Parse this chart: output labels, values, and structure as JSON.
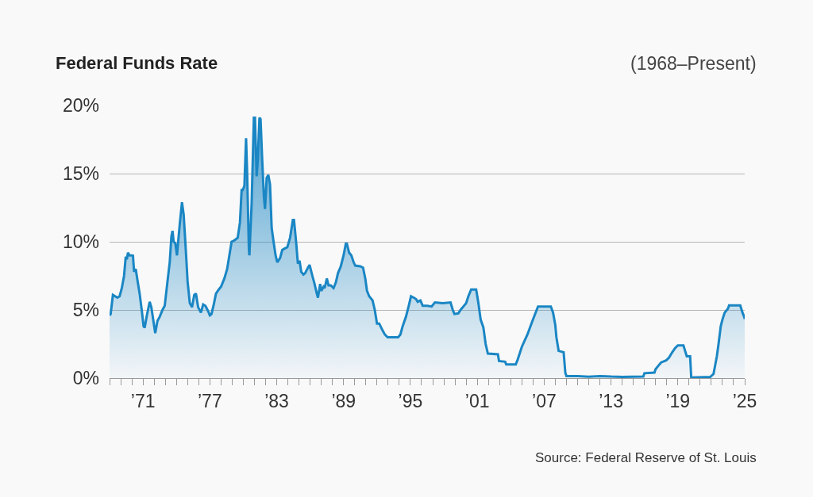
{
  "chart_data": {
    "type": "area",
    "title": "Federal Funds Rate",
    "subtitle": "(1968–Present)",
    "annotations": [
      "Source: Federal Reserve of St. Louis"
    ],
    "xlim": [
      1968,
      2025
    ],
    "xticks": [
      {
        "value": 1968,
        "label": null
      },
      {
        "value": 1969,
        "label": null
      },
      {
        "value": 1970,
        "label": null
      },
      {
        "value": 1971,
        "label": "’71"
      },
      {
        "value": 1972,
        "label": null
      },
      {
        "value": 1973,
        "label": null
      },
      {
        "value": 1974,
        "label": null
      },
      {
        "value": 1975,
        "label": null
      },
      {
        "value": 1976,
        "label": null
      },
      {
        "value": 1977,
        "label": "’77"
      },
      {
        "value": 1978,
        "label": null
      },
      {
        "value": 1979,
        "label": null
      },
      {
        "value": 1980,
        "label": null
      },
      {
        "value": 1981,
        "label": null
      },
      {
        "value": 1982,
        "label": null
      },
      {
        "value": 1983,
        "label": "’83"
      },
      {
        "value": 1984,
        "label": null
      },
      {
        "value": 1985,
        "label": null
      },
      {
        "value": 1986,
        "label": null
      },
      {
        "value": 1987,
        "label": null
      },
      {
        "value": 1988,
        "label": null
      },
      {
        "value": 1989,
        "label": "’89"
      },
      {
        "value": 1990,
        "label": null
      },
      {
        "value": 1991,
        "label": null
      },
      {
        "value": 1992,
        "label": null
      },
      {
        "value": 1993,
        "label": null
      },
      {
        "value": 1994,
        "label": null
      },
      {
        "value": 1995,
        "label": "’95"
      },
      {
        "value": 1996,
        "label": null
      },
      {
        "value": 1997,
        "label": null
      },
      {
        "value": 1998,
        "label": null
      },
      {
        "value": 1999,
        "label": null
      },
      {
        "value": 2000,
        "label": null
      },
      {
        "value": 2001,
        "label": "’01"
      },
      {
        "value": 2002,
        "label": null
      },
      {
        "value": 2003,
        "label": null
      },
      {
        "value": 2004,
        "label": null
      },
      {
        "value": 2005,
        "label": null
      },
      {
        "value": 2006,
        "label": null
      },
      {
        "value": 2007,
        "label": "’07"
      },
      {
        "value": 2008,
        "label": null
      },
      {
        "value": 2009,
        "label": null
      },
      {
        "value": 2010,
        "label": null
      },
      {
        "value": 2011,
        "label": null
      },
      {
        "value": 2012,
        "label": null
      },
      {
        "value": 2013,
        "label": "’13"
      },
      {
        "value": 2014,
        "label": null
      },
      {
        "value": 2015,
        "label": null
      },
      {
        "value": 2016,
        "label": null
      },
      {
        "value": 2017,
        "label": null
      },
      {
        "value": 2018,
        "label": null
      },
      {
        "value": 2019,
        "label": "’19"
      },
      {
        "value": 2020,
        "label": null
      },
      {
        "value": 2021,
        "label": null
      },
      {
        "value": 2022,
        "label": null
      },
      {
        "value": 2023,
        "label": null
      },
      {
        "value": 2024,
        "label": null
      },
      {
        "value": 2025,
        "label": "’25"
      }
    ],
    "ylim": [
      0,
      20
    ],
    "yticks": [
      {
        "value": 0,
        "label": "0%"
      },
      {
        "value": 5,
        "label": "5%"
      },
      {
        "value": 10,
        "label": "10%"
      },
      {
        "value": 15,
        "label": "15%"
      },
      {
        "value": 20,
        "label": "20%"
      }
    ],
    "grid": "y",
    "series": [
      {
        "color": "#1a86c4",
        "x": [
          1968.0,
          1968.1,
          1968.3,
          1968.5,
          1968.7,
          1968.9,
          1969.1,
          1969.3,
          1969.45,
          1969.55,
          1969.65,
          1969.8,
          1970.0,
          1970.1,
          1970.2,
          1970.35,
          1970.5,
          1970.7,
          1970.9,
          1971.05,
          1971.15,
          1971.35,
          1971.6,
          1971.75,
          1971.95,
          1972.1,
          1972.3,
          1972.5,
          1972.75,
          1972.95,
          1973.2,
          1973.4,
          1973.55,
          1973.65,
          1973.75,
          1973.9,
          1974.05,
          1974.3,
          1974.5,
          1974.65,
          1974.85,
          1975.0,
          1975.2,
          1975.4,
          1975.6,
          1975.75,
          1975.95,
          1976.2,
          1976.4,
          1976.6,
          1976.85,
          1977.0,
          1977.15,
          1977.35,
          1977.55,
          1977.8,
          1978.0,
          1978.3,
          1978.55,
          1978.75,
          1978.95,
          1979.2,
          1979.5,
          1979.7,
          1979.85,
          1979.95,
          1980.1,
          1980.25,
          1980.35,
          1980.5,
          1980.55,
          1980.75,
          1980.95,
          1981.05,
          1981.2,
          1981.3,
          1981.45,
          1981.55,
          1981.7,
          1981.85,
          1981.95,
          1982.1,
          1982.25,
          1982.4,
          1982.55,
          1982.7,
          1982.9,
          1983.05,
          1983.3,
          1983.5,
          1983.7,
          1983.95,
          1984.2,
          1984.45,
          1984.55,
          1984.75,
          1984.9,
          1985.05,
          1985.2,
          1985.4,
          1985.55,
          1985.8,
          1985.95,
          1986.2,
          1986.4,
          1986.6,
          1986.7,
          1986.9,
          1987.0,
          1987.2,
          1987.3,
          1987.5,
          1987.65,
          1987.85,
          1988.1,
          1988.3,
          1988.5,
          1988.75,
          1989.0,
          1989.2,
          1989.3,
          1989.5,
          1989.7,
          1989.9,
          1990.05,
          1990.5,
          1990.75,
          1990.95,
          1991.1,
          1991.3,
          1991.6,
          1991.8,
          1992.0,
          1992.2,
          1992.5,
          1992.7,
          1992.95,
          1993.5,
          1993.9,
          1994.1,
          1994.3,
          1994.6,
          1994.85,
          1995.05,
          1995.3,
          1995.5,
          1995.65,
          1995.9,
          1996.1,
          1996.5,
          1996.9,
          1997.2,
          1997.9,
          1998.6,
          1998.8,
          1998.95,
          1999.3,
          1999.5,
          1999.8,
          2000.0,
          2000.2,
          2000.45,
          2000.9,
          2001.1,
          2001.3,
          2001.55,
          2001.75,
          2001.95,
          2002.85,
          2002.95,
          2003.5,
          2003.6,
          2004.45,
          2004.6,
          2005.0,
          2005.5,
          2006.0,
          2006.45,
          2007.6,
          2007.8,
          2008.0,
          2008.1,
          2008.3,
          2008.75,
          2008.9,
          2009.0,
          2010.0,
          2011.0,
          2012.0,
          2013.0,
          2014.0,
          2015.9,
          2016.0,
          2016.9,
          2017.0,
          2017.25,
          2017.5,
          2017.95,
          2018.2,
          2018.5,
          2018.75,
          2019.0,
          2019.5,
          2019.65,
          2019.8,
          2020.1,
          2020.2,
          2021.9,
          2022.2,
          2022.5,
          2022.65,
          2022.85,
          2023.0,
          2023.2,
          2023.5,
          2023.6,
          2024.6,
          2024.8,
          2024.95,
          2025.0
        ],
        "values": [
          4.6,
          4.7,
          6.1,
          6.0,
          5.9,
          6.0,
          6.6,
          7.5,
          8.9,
          8.7,
          9.2,
          9.0,
          9.0,
          8.98,
          7.8,
          8.0,
          7.2,
          6.2,
          4.9,
          3.8,
          3.7,
          4.6,
          5.6,
          5.2,
          4.1,
          3.3,
          4.2,
          4.5,
          5.0,
          5.3,
          7.1,
          8.5,
          10.4,
          10.8,
          10.0,
          9.9,
          9.0,
          11.3,
          12.9,
          12.0,
          9.3,
          7.1,
          5.5,
          5.2,
          6.1,
          6.2,
          5.2,
          4.8,
          5.4,
          5.3,
          4.9,
          4.6,
          4.7,
          5.4,
          6.2,
          6.5,
          6.7,
          7.3,
          8.0,
          9.0,
          10.0,
          10.1,
          10.3,
          11.4,
          13.8,
          13.8,
          14.1,
          17.6,
          15.0,
          9.5,
          9.0,
          12.8,
          19.1,
          19.1,
          14.8,
          16.0,
          19.1,
          19.0,
          16.0,
          13.3,
          12.4,
          14.7,
          14.9,
          14.2,
          11.0,
          10.1,
          9.0,
          8.5,
          8.8,
          9.4,
          9.5,
          9.6,
          10.3,
          11.6,
          11.6,
          9.9,
          8.4,
          8.6,
          7.8,
          7.6,
          7.7,
          8.1,
          8.3,
          7.5,
          6.9,
          6.2,
          5.9,
          6.9,
          6.4,
          6.7,
          6.6,
          7.3,
          6.8,
          6.8,
          6.6,
          7.0,
          7.7,
          8.2,
          9.0,
          9.85,
          9.85,
          9.2,
          9.0,
          8.5,
          8.25,
          8.2,
          8.1,
          7.3,
          6.4,
          6.0,
          5.7,
          5.0,
          4.0,
          4.0,
          3.5,
          3.2,
          3.0,
          3.0,
          3.0,
          3.2,
          3.8,
          4.5,
          5.3,
          6.0,
          5.9,
          5.8,
          5.6,
          5.7,
          5.3,
          5.3,
          5.25,
          5.55,
          5.5,
          5.55,
          5.0,
          4.7,
          4.75,
          5.0,
          5.3,
          5.5,
          6.0,
          6.5,
          6.5,
          5.5,
          4.3,
          3.7,
          2.5,
          1.8,
          1.75,
          1.25,
          1.2,
          1.0,
          1.0,
          1.3,
          2.3,
          3.2,
          4.3,
          5.25,
          5.25,
          4.8,
          3.9,
          3.0,
          2.0,
          1.9,
          0.4,
          0.15,
          0.15,
          0.1,
          0.15,
          0.11,
          0.09,
          0.12,
          0.36,
          0.41,
          0.65,
          0.91,
          1.15,
          1.3,
          1.5,
          1.9,
          2.2,
          2.4,
          2.4,
          2.0,
          1.6,
          1.6,
          0.05,
          0.08,
          0.3,
          1.6,
          2.5,
          3.8,
          4.3,
          4.8,
          5.1,
          5.33,
          5.33,
          4.8,
          4.5,
          4.33
        ]
      }
    ]
  }
}
